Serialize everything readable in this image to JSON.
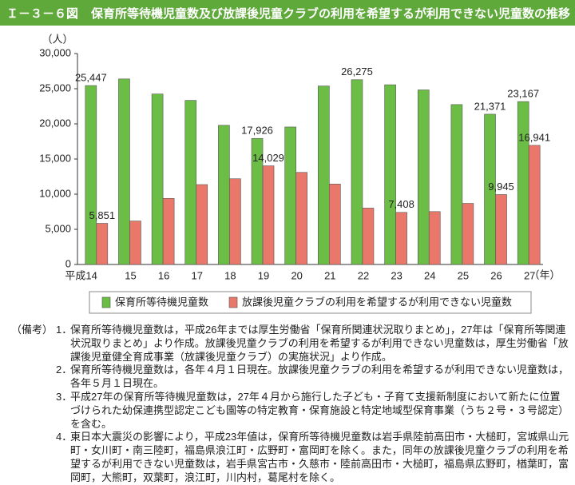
{
  "header": {
    "figure": "Ｉ－３－６図",
    "title": "保育所等待機児童数及び放課後児童クラブの利用を希望するが利用できない児童数の推移"
  },
  "chart_data": {
    "type": "bar",
    "y_unit": "（人）",
    "x_unit": "（年）",
    "categories": [
      "平成14",
      "15",
      "16",
      "17",
      "18",
      "19",
      "20",
      "21",
      "22",
      "23",
      "24",
      "25",
      "26",
      "27"
    ],
    "series": [
      {
        "name": "保育所等待機児童数",
        "color": "#6cbd45",
        "values": [
          25447,
          26383,
          24245,
          23338,
          19794,
          17926,
          19550,
          25384,
          26275,
          25556,
          24825,
          22741,
          21371,
          23167
        ],
        "value_labels": [
          "25,447",
          null,
          null,
          null,
          null,
          "17,926",
          null,
          null,
          "26,275",
          null,
          null,
          null,
          "21,371",
          "23,167"
        ]
      },
      {
        "name": "放課後児童クラブの利用を希望するが利用できない児童数",
        "color": "#e9786b",
        "values": [
          5851,
          6180,
          9400,
          11360,
          12189,
          14029,
          13096,
          11438,
          8021,
          7408,
          7521,
          8689,
          9945,
          16941
        ],
        "value_labels": [
          "5,851",
          null,
          null,
          null,
          null,
          "14,029",
          null,
          null,
          null,
          "7,408",
          null,
          null,
          "9,945",
          "16,941"
        ]
      }
    ],
    "ylim": [
      0,
      30000
    ],
    "yticks": [
      0,
      {
        "value": 5000,
        "label": "5,000"
      },
      {
        "value": 10000,
        "label": "10,000"
      },
      {
        "value": 15000,
        "label": "15,000"
      },
      {
        "value": 20000,
        "label": "20,000"
      },
      {
        "value": 25000,
        "label": "25,000"
      },
      {
        "value": 30000,
        "label": "30,000"
      }
    ],
    "grid": false
  },
  "notes": {
    "label": "（備考）",
    "items": [
      {
        "number": "1．",
        "text": "保育所等待機児童数は，平成26年までは厚生労働省「保育所関連状況取りまとめ」，27年は「保育所等関連状況取りまとめ」より作成。放課後児童クラブの利用を希望するが利用できない児童数は，厚生労働省「放課後児童健全育成事業（放課後児童クラブ）の実施状況」より作成。"
      },
      {
        "number": "2．",
        "text": "保育所等待機児童数は，各年４月１日現在。放課後児童クラブの利用を希望するが利用できない児童数は，各年５月１日現在。"
      },
      {
        "number": "3．",
        "text": "平成27年の保育所等待機児童数は，27年４月から施行した子ども・子育て支援新制度において新たに位置づけられた幼保連携型認定こども園等の特定教育・保育施設と特定地域型保育事業（うち２号・３号認定）を含む。"
      },
      {
        "number": "4．",
        "text": "東日本大震災の影響により，平成23年値は，保育所等待機児童数は岩手県陸前高田市・大槌町，宮城県山元町・女川町・南三陸町，福島県浪江町・広野町・富岡町を除く。また，同年の放課後児童クラブの利用を希望するが利用できない児童数は，岩手県宮古市・久慈市・陸前高田市・大槌町，福島県広野町，楢葉町，富岡町，大熊町，双葉町，浪江町，川内村，葛尾村を除く。"
      }
    ]
  }
}
